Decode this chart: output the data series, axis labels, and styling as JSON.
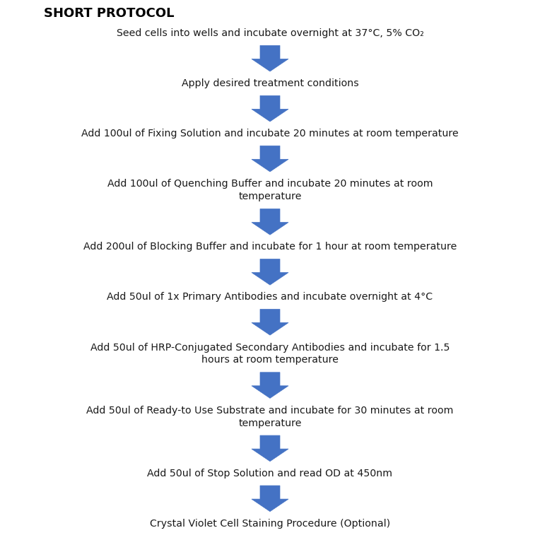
{
  "title": "SHORT PROTOCOL",
  "title_fontsize": 13,
  "title_fontweight": "bold",
  "background_color": "#ffffff",
  "arrow_color": "#4472C4",
  "text_color": "#1a1a1a",
  "text_fontsize": 10.2,
  "steps": [
    "Seed cells into wells and incubate overnight at 37°C, 5% CO₂",
    "Apply desired treatment conditions",
    "Add 100ul of Fixing Solution and incubate 20 minutes at room temperature",
    "Add 100ul of Quenching Buffer and incubate 20 minutes at room\ntemperature",
    "Add 200ul of Blocking Buffer and incubate for 1 hour at room temperature",
    "Add 50ul of 1x Primary Antibodies and incubate overnight at 4°C",
    "Add 50ul of HRP-Conjugated Secondary Antibodies and incubate for 1.5\nhours at room temperature",
    "Add 50ul of Ready-to Use Substrate and incubate for 30 minutes at room\ntemperature",
    "Add 50ul of Stop Solution and read OD at 450nm",
    "Crystal Violet Cell Staining Procedure (Optional)"
  ],
  "step_heights": [
    1,
    1,
    1,
    2,
    1,
    1,
    2,
    2,
    1,
    1
  ],
  "figsize": [
    7.64,
    7.64
  ],
  "dpi": 100
}
